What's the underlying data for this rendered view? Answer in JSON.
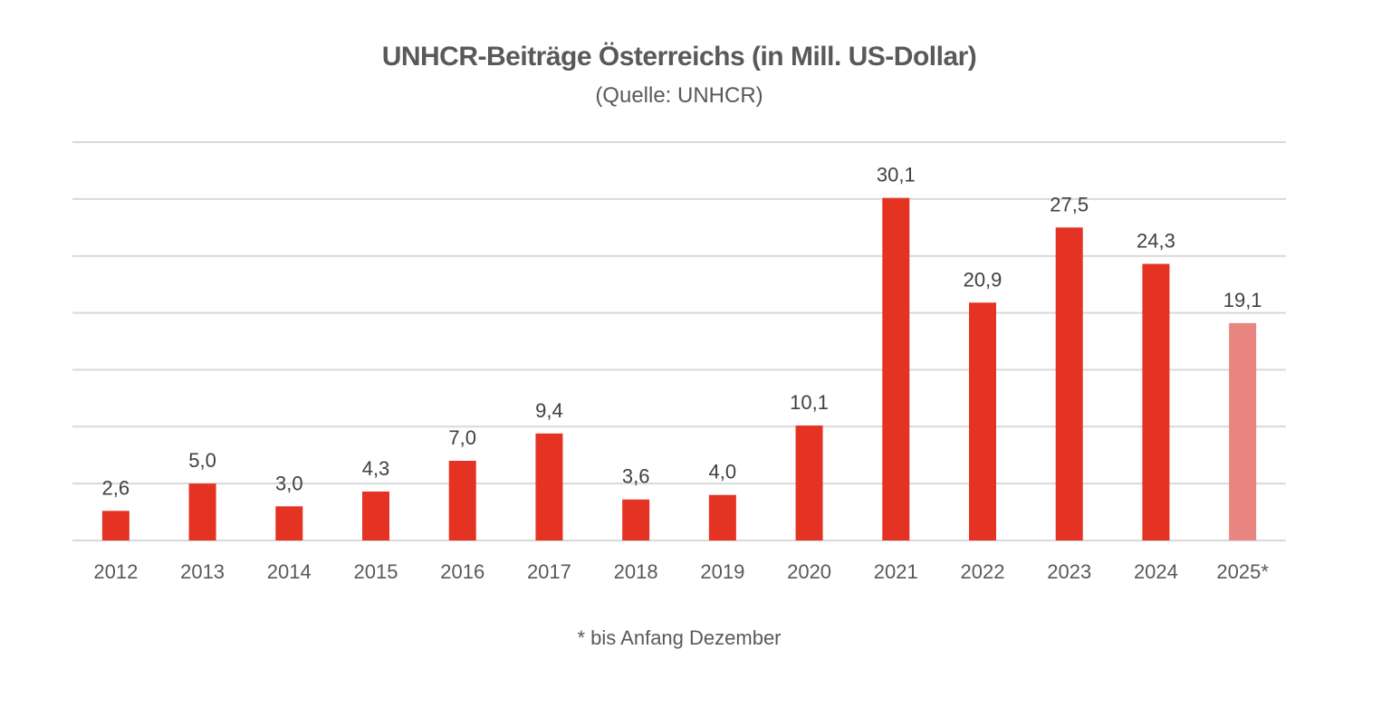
{
  "chart_data": {
    "type": "bar",
    "title": "UNHCR-Beiträge Österreichs (in Mill. US-Dollar)",
    "subtitle": "(Quelle: UNHCR)",
    "footnote": "* bis Anfang Dezember",
    "xlabel": "",
    "ylabel": "",
    "ylim": [
      0,
      35
    ],
    "grid": true,
    "grid_step": 5,
    "categories": [
      "2012",
      "2013",
      "2014",
      "2015",
      "2016",
      "2017",
      "2018",
      "2019",
      "2020",
      "2021",
      "2022",
      "2023",
      "2024",
      "2025*"
    ],
    "values": [
      2.6,
      5.0,
      3.0,
      4.3,
      7.0,
      9.4,
      3.6,
      4.0,
      10.1,
      30.1,
      20.9,
      27.5,
      24.3,
      19.1
    ],
    "value_labels": [
      "2,6",
      "5,0",
      "3,0",
      "4,3",
      "7,0",
      "9,4",
      "3,6",
      "4,0",
      "10,1",
      "30,1",
      "20,9",
      "27,5",
      "24,3",
      "19,1"
    ],
    "colors": {
      "bar": "#e53323",
      "bar_partial": "#e98580",
      "grid": "#d9d9d9",
      "text": "#595959",
      "label": "#404040"
    },
    "partial_categories": [
      "2025*"
    ]
  }
}
